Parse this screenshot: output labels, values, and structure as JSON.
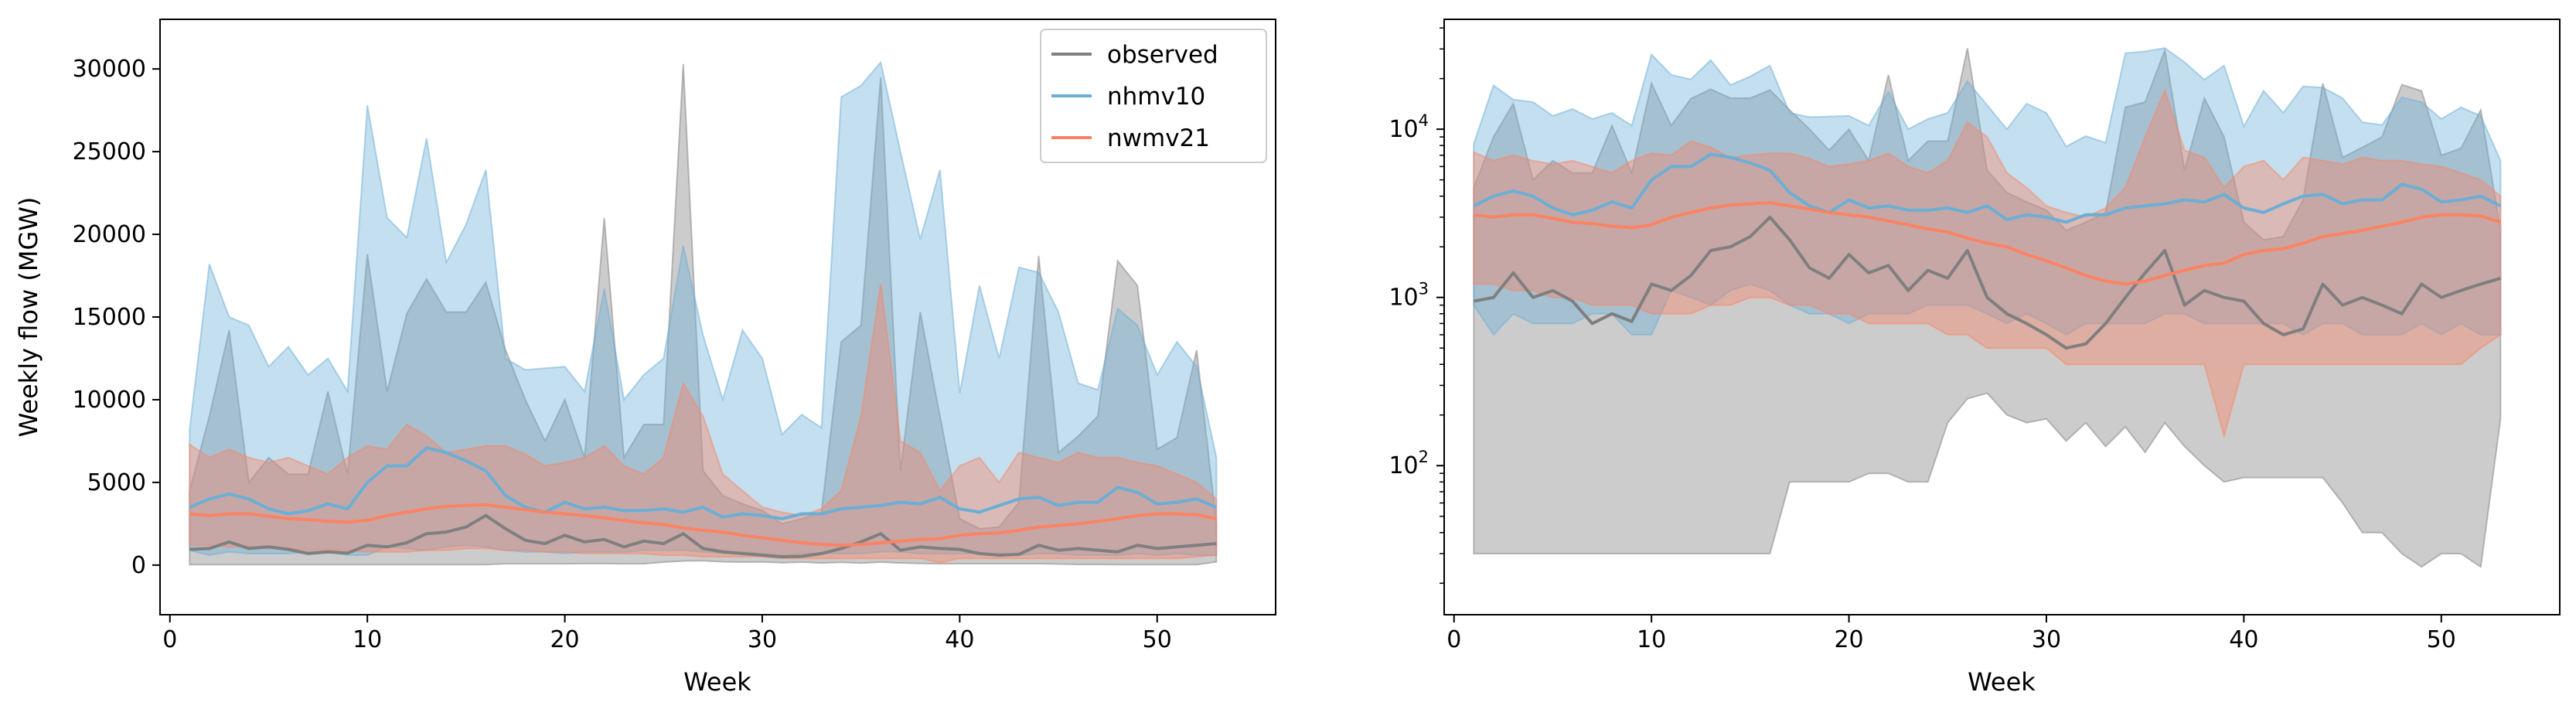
{
  "chart_data": [
    {
      "type": "area",
      "title": "",
      "xlabel": "Week",
      "ylabel": "Weekly flow (MGW)",
      "xlim": [
        -0.5,
        56
      ],
      "ylim": [
        -3000,
        33000
      ],
      "yscale": "linear",
      "xticks": [
        0,
        10,
        20,
        30,
        40,
        50
      ],
      "yticks": [
        0,
        5000,
        10000,
        15000,
        20000,
        25000,
        30000
      ],
      "grid": false,
      "legend": {
        "placement": "top-right"
      },
      "x": [
        1,
        2,
        3,
        4,
        5,
        6,
        7,
        8,
        9,
        10,
        11,
        12,
        13,
        14,
        15,
        16,
        17,
        18,
        19,
        20,
        21,
        22,
        23,
        24,
        25,
        26,
        27,
        28,
        29,
        30,
        31,
        32,
        33,
        34,
        35,
        36,
        37,
        38,
        39,
        40,
        41,
        42,
        43,
        44,
        45,
        46,
        47,
        48,
        49,
        50,
        51,
        52,
        53
      ],
      "series": [
        {
          "name": "observed",
          "color": "#7f7f7f",
          "mean": [
            950,
            1000,
            1400,
            1000,
            1100,
            950,
            700,
            800,
            720,
            1200,
            1100,
            1350,
            1900,
            2000,
            2300,
            3000,
            2200,
            1500,
            1300,
            1800,
            1400,
            1550,
            1100,
            1450,
            1300,
            1900,
            1000,
            800,
            700,
            600,
            500,
            530,
            700,
            1000,
            1400,
            1900,
            900,
            1100,
            1000,
            950,
            700,
            600,
            650,
            1200,
            900,
            1000,
            900,
            800,
            1200,
            1000,
            1100,
            1200,
            1300
          ],
          "lower": [
            30,
            30,
            30,
            30,
            30,
            30,
            30,
            30,
            30,
            30,
            30,
            30,
            30,
            30,
            30,
            30,
            80,
            80,
            80,
            80,
            90,
            90,
            80,
            80,
            180,
            250,
            270,
            200,
            180,
            190,
            140,
            180,
            130,
            170,
            120,
            180,
            130,
            100,
            80,
            85,
            85,
            85,
            85,
            85,
            60,
            40,
            40,
            30,
            25,
            30,
            30,
            25,
            190
          ],
          "upper": [
            4500,
            9000,
            14200,
            5000,
            6500,
            5500,
            5500,
            10500,
            5500,
            18800,
            10500,
            15200,
            17300,
            15300,
            15300,
            17100,
            13000,
            10000,
            7500,
            10000,
            6500,
            21000,
            6500,
            8500,
            8500,
            30300,
            5700,
            4200,
            3700,
            3300,
            2500,
            2800,
            3200,
            13500,
            14500,
            29500,
            5700,
            15300,
            9000,
            2800,
            2200,
            2300,
            3800,
            18700,
            6800,
            7800,
            9000,
            18400,
            16900,
            7000,
            7700,
            13000,
            2500
          ]
        },
        {
          "name": "nhmv10",
          "color": "#6baed6",
          "mean": [
            3500,
            4000,
            4300,
            4000,
            3400,
            3100,
            3300,
            3700,
            3400,
            5000,
            6000,
            6000,
            7100,
            6800,
            6300,
            5700,
            4200,
            3500,
            3200,
            3800,
            3400,
            3500,
            3300,
            3300,
            3400,
            3200,
            3500,
            2900,
            3100,
            3000,
            2800,
            3100,
            3100,
            3400,
            3500,
            3600,
            3800,
            3700,
            4100,
            3400,
            3200,
            3600,
            4000,
            4100,
            3600,
            3800,
            3800,
            4700,
            4400,
            3700,
            3800,
            4000,
            3500
          ],
          "lower": [
            900,
            600,
            800,
            700,
            700,
            700,
            800,
            800,
            600,
            600,
            1100,
            1000,
            900,
            1100,
            1200,
            1100,
            900,
            800,
            800,
            700,
            800,
            800,
            800,
            900,
            900,
            900,
            800,
            700,
            800,
            700,
            600,
            700,
            700,
            700,
            700,
            800,
            800,
            700,
            700,
            700,
            700,
            700,
            600,
            700,
            700,
            600,
            600,
            600,
            700,
            600,
            700,
            600,
            600
          ],
          "upper": [
            8200,
            18200,
            15000,
            14500,
            12000,
            13200,
            11500,
            12500,
            10500,
            27800,
            21000,
            19800,
            25800,
            18300,
            20600,
            23900,
            12500,
            11800,
            11900,
            12000,
            10500,
            16700,
            10000,
            11500,
            12500,
            19300,
            13900,
            10000,
            14200,
            12500,
            7900,
            9100,
            8300,
            28300,
            29000,
            30400,
            25000,
            19700,
            23900,
            10400,
            16900,
            12500,
            18000,
            17700,
            15300,
            11000,
            10600,
            15500,
            14500,
            11500,
            13500,
            12000,
            6500
          ]
        },
        {
          "name": "nwmv21",
          "color": "#fb8363",
          "mean": [
            3100,
            3000,
            3100,
            3100,
            2950,
            2800,
            2750,
            2650,
            2600,
            2700,
            3000,
            3200,
            3400,
            3550,
            3600,
            3650,
            3500,
            3350,
            3200,
            3100,
            3000,
            2850,
            2700,
            2550,
            2450,
            2250,
            2100,
            2000,
            1800,
            1650,
            1500,
            1350,
            1250,
            1200,
            1250,
            1350,
            1450,
            1550,
            1600,
            1800,
            1900,
            1950,
            2100,
            2300,
            2400,
            2500,
            2650,
            2800,
            3000,
            3100,
            3100,
            3050,
            2800
          ],
          "lower": [
            1200,
            1200,
            1100,
            1100,
            1000,
            1000,
            900,
            900,
            900,
            800,
            800,
            800,
            900,
            900,
            1000,
            1000,
            900,
            900,
            800,
            800,
            700,
            700,
            700,
            700,
            600,
            600,
            500,
            500,
            500,
            500,
            400,
            400,
            400,
            400,
            400,
            400,
            400,
            400,
            150,
            400,
            400,
            400,
            400,
            400,
            400,
            400,
            400,
            400,
            400,
            400,
            400,
            500,
            600
          ],
          "upper": [
            7300,
            6500,
            7000,
            6500,
            6200,
            6500,
            6000,
            5500,
            6500,
            7200,
            7000,
            8500,
            7800,
            6800,
            7000,
            7200,
            7200,
            6700,
            6000,
            6200,
            6500,
            7200,
            6000,
            5500,
            6500,
            11000,
            9000,
            5500,
            4500,
            3500,
            3200,
            3000,
            3400,
            4500,
            9000,
            17000,
            7500,
            6800,
            4500,
            6000,
            6500,
            5000,
            6800,
            6500,
            6200,
            6800,
            6500,
            6500,
            6200,
            6000,
            5500,
            5000,
            4000
          ]
        }
      ]
    },
    {
      "type": "area",
      "title": "",
      "xlabel": "Week",
      "ylabel": "",
      "xlim": [
        -0.5,
        56
      ],
      "ylim": [
        13,
        45000
      ],
      "yscale": "log",
      "xticks": [
        0,
        10,
        20,
        30,
        40,
        50
      ],
      "yticks": [
        100,
        1000,
        10000
      ],
      "grid": false,
      "legend": {
        "placement": "none"
      },
      "series_ref": "same as left panel"
    }
  ],
  "tick_labels_left_y": [
    "0",
    "5000",
    "10000",
    "15000",
    "20000",
    "25000",
    "30000"
  ],
  "tick_labels_x": [
    "0",
    "10",
    "20",
    "30",
    "40",
    "50"
  ],
  "tick_labels_right_y": [
    "2",
    "3",
    "4"
  ],
  "tick_label_log_base": "10"
}
